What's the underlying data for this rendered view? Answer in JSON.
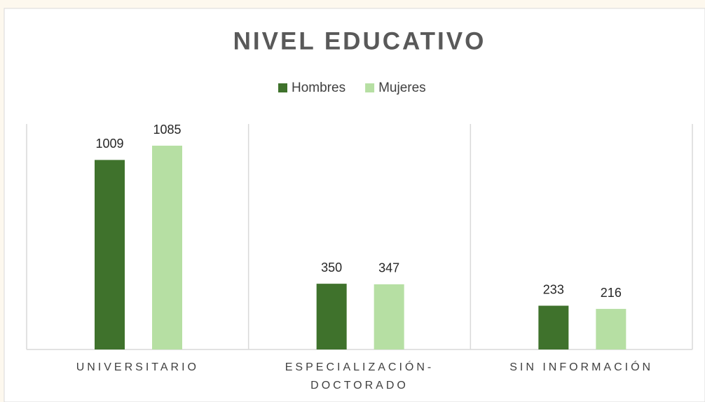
{
  "chart_data": {
    "type": "bar",
    "title": "NIVEL EDUCATIVO",
    "categories": [
      "UNIVERSITARIO",
      "ESPECIALIZACIÓN-DOCTORADO",
      "SIN INFORMACIÓN"
    ],
    "series": [
      {
        "name": "Hombres",
        "color": "#3f722c",
        "values": [
          1009,
          350,
          233
        ]
      },
      {
        "name": "Mujeres",
        "color": "#b6dfa3",
        "values": [
          1085,
          347,
          216
        ]
      }
    ],
    "legend": "top"
  }
}
